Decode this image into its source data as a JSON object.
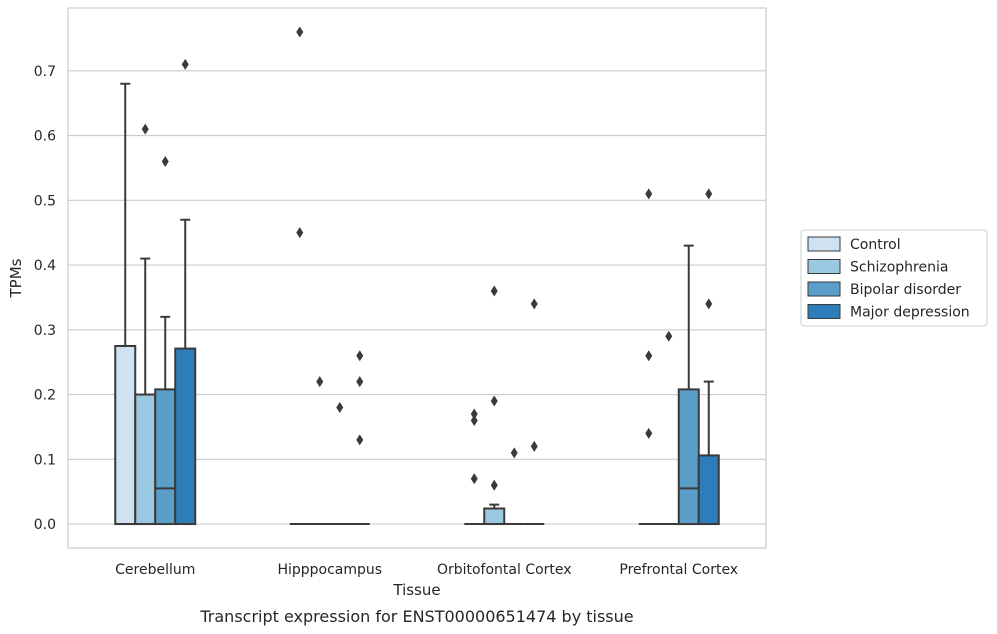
{
  "chart_data": {
    "type": "box",
    "caption": "Transcript expression for ENST00000651474 by tissue",
    "xlabel": "Tissue",
    "ylabel": "TPMs",
    "ylim": [
      -0.037,
      0.797
    ],
    "yticks": [
      0.0,
      0.1,
      0.2,
      0.3,
      0.4,
      0.5,
      0.6,
      0.7
    ],
    "ytick_labels": [
      "0.0",
      "0.1",
      "0.2",
      "0.3",
      "0.4",
      "0.5",
      "0.6",
      "0.7"
    ],
    "grid": "horizontal",
    "legend_position": "right",
    "categories": [
      "Cerebellum",
      "Hipppocampus",
      "Orbitofontal Cortex",
      "Prefrontal Cortex"
    ],
    "series": [
      {
        "name": "Control",
        "color": "#d0e1f2",
        "boxes": [
          {
            "q1": 0.0,
            "median": 0.0,
            "q3": 0.275,
            "whisker_low": 0.0,
            "whisker_high": 0.68,
            "outliers": []
          },
          {
            "q1": 0.0,
            "median": 0.0,
            "q3": 0.0,
            "whisker_low": 0.0,
            "whisker_high": 0.0,
            "outliers": [
              0.76,
              0.45
            ]
          },
          {
            "q1": 0.0,
            "median": 0.0,
            "q3": 0.0,
            "whisker_low": 0.0,
            "whisker_high": 0.0,
            "outliers": [
              0.17,
              0.16,
              0.07
            ]
          },
          {
            "q1": 0.0,
            "median": 0.0,
            "q3": 0.0,
            "whisker_low": 0.0,
            "whisker_high": 0.0,
            "outliers": [
              0.51,
              0.26,
              0.14
            ]
          }
        ]
      },
      {
        "name": "Schizophrenia",
        "color": "#9ac8e0",
        "boxes": [
          {
            "q1": 0.0,
            "median": 0.0,
            "q3": 0.2,
            "whisker_low": 0.0,
            "whisker_high": 0.41,
            "outliers": [
              0.61
            ]
          },
          {
            "q1": 0.0,
            "median": 0.0,
            "q3": 0.0,
            "whisker_low": 0.0,
            "whisker_high": 0.0,
            "outliers": [
              0.22
            ]
          },
          {
            "q1": 0.0,
            "median": 0.0,
            "q3": 0.024,
            "whisker_low": 0.0,
            "whisker_high": 0.03,
            "outliers": [
              0.36,
              0.19,
              0.06
            ]
          },
          {
            "q1": 0.0,
            "median": 0.0,
            "q3": 0.0,
            "whisker_low": 0.0,
            "whisker_high": 0.0,
            "outliers": [
              0.29
            ]
          }
        ]
      },
      {
        "name": "Bipolar disorder",
        "color": "#5b9ec9",
        "boxes": [
          {
            "q1": 0.0,
            "median": 0.055,
            "q3": 0.208,
            "whisker_low": 0.0,
            "whisker_high": 0.32,
            "outliers": [
              0.56
            ]
          },
          {
            "q1": 0.0,
            "median": 0.0,
            "q3": 0.0,
            "whisker_low": 0.0,
            "whisker_high": 0.0,
            "outliers": [
              0.18
            ]
          },
          {
            "q1": 0.0,
            "median": 0.0,
            "q3": 0.0,
            "whisker_low": 0.0,
            "whisker_high": 0.0,
            "outliers": [
              0.11
            ]
          },
          {
            "q1": 0.0,
            "median": 0.055,
            "q3": 0.208,
            "whisker_low": 0.0,
            "whisker_high": 0.43,
            "outliers": []
          }
        ]
      },
      {
        "name": "Major depression",
        "color": "#2d7dbb",
        "boxes": [
          {
            "q1": 0.0,
            "median": 0.0,
            "q3": 0.271,
            "whisker_low": 0.0,
            "whisker_high": 0.47,
            "outliers": [
              0.71
            ]
          },
          {
            "q1": 0.0,
            "median": 0.0,
            "q3": 0.0,
            "whisker_low": 0.0,
            "whisker_high": 0.0,
            "outliers": [
              0.26,
              0.22,
              0.13
            ]
          },
          {
            "q1": 0.0,
            "median": 0.0,
            "q3": 0.0,
            "whisker_low": 0.0,
            "whisker_high": 0.0,
            "outliers": [
              0.34,
              0.12
            ]
          },
          {
            "q1": 0.0,
            "median": 0.0,
            "q3": 0.106,
            "whisker_low": 0.0,
            "whisker_high": 0.22,
            "outliers": [
              0.51,
              0.34
            ]
          }
        ]
      }
    ]
  }
}
